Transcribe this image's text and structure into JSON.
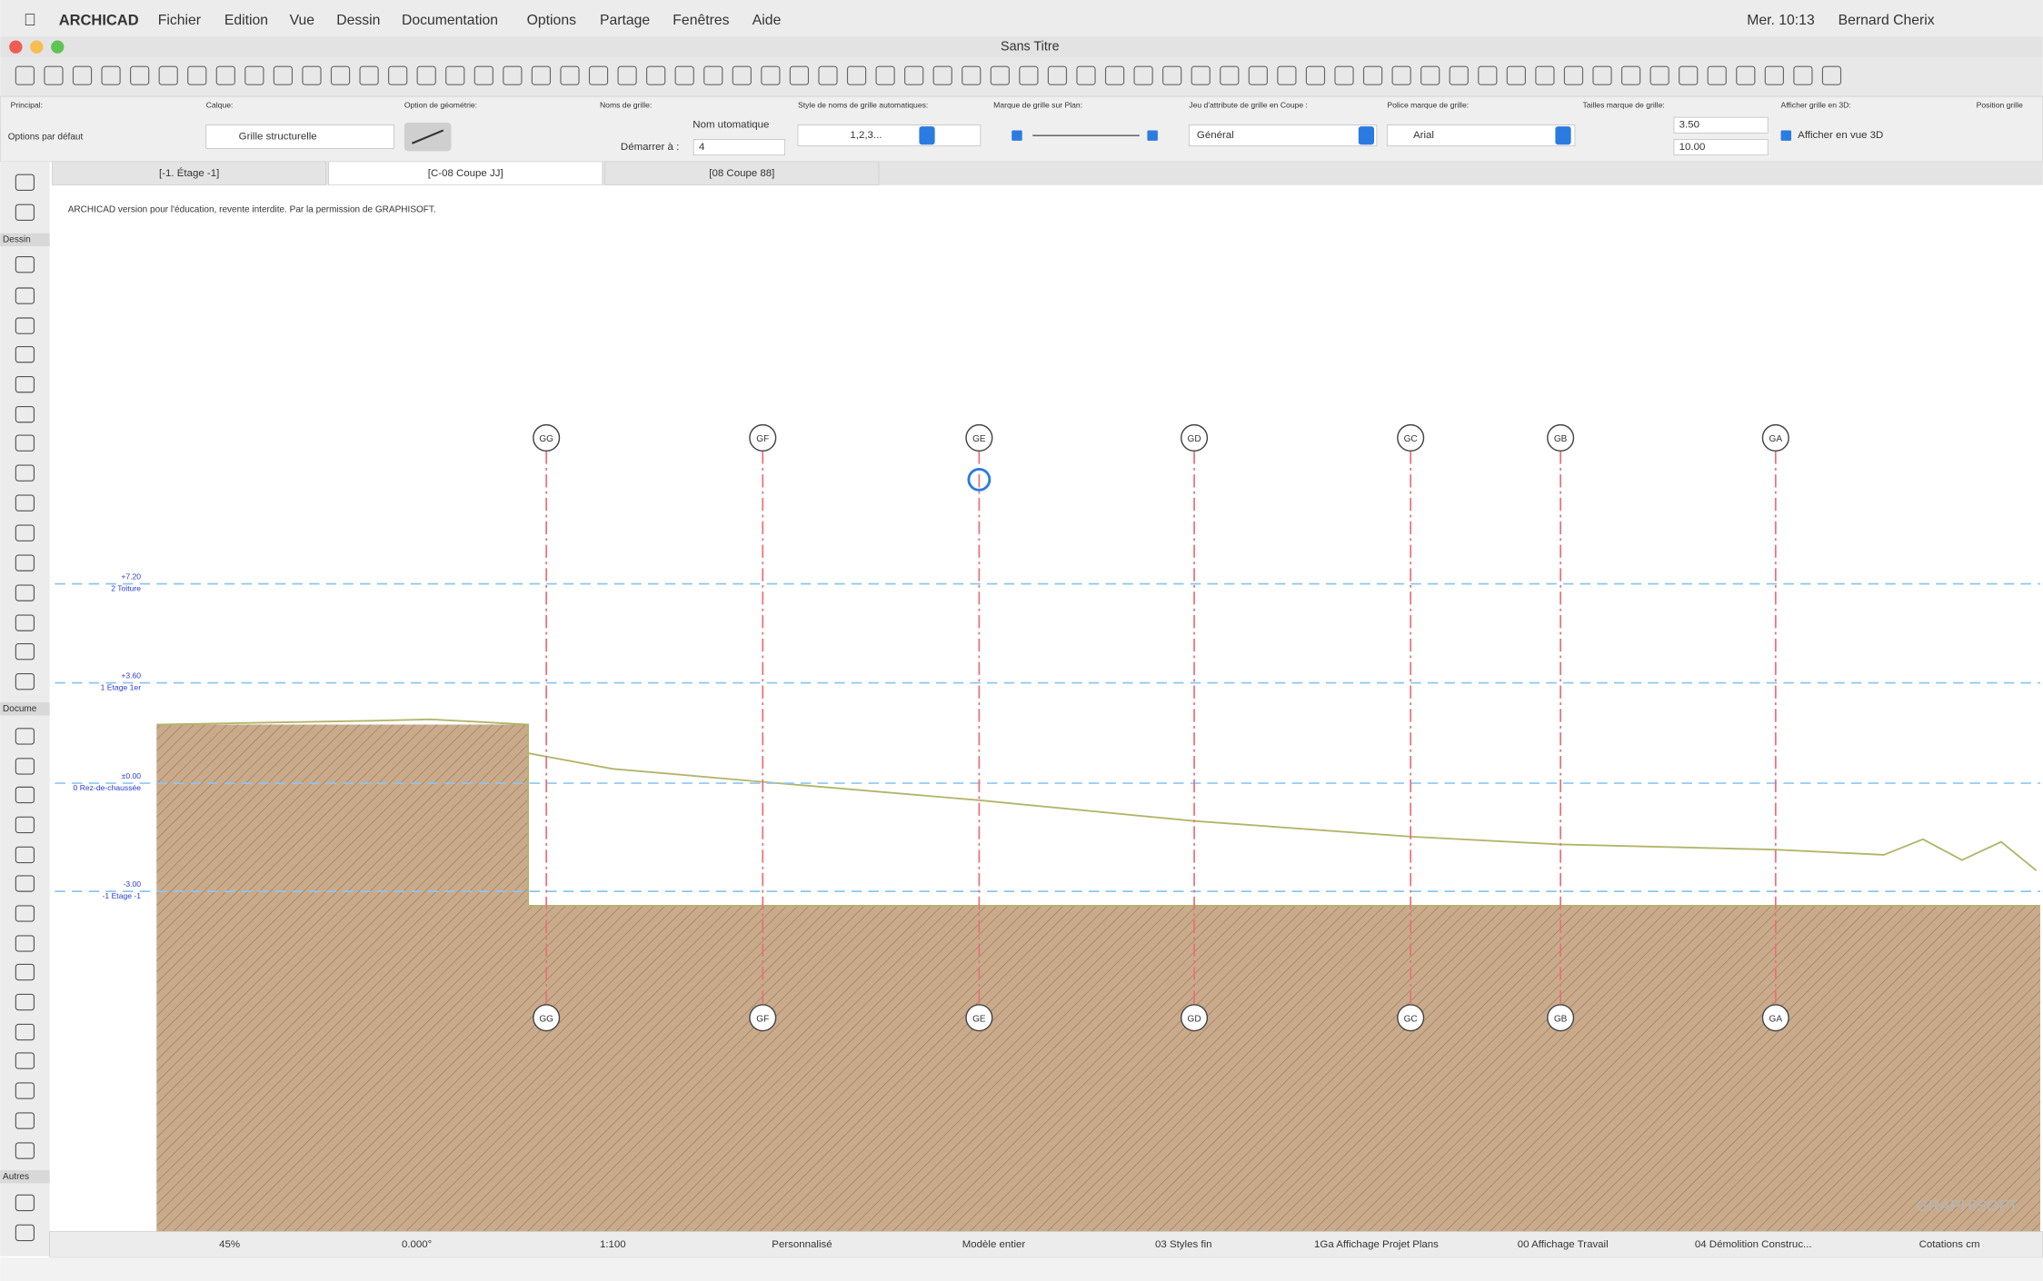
{
  "menubar": {
    "app": "ARCHICAD",
    "menus": [
      "Fichier",
      "Edition",
      "Vue",
      "Dessin",
      "Documentation",
      "Options",
      "Partage",
      "Fenêtres",
      "Aide"
    ],
    "clock": "Mer. 10:13",
    "user": "Bernard Cherix"
  },
  "window": {
    "title": "Sans Titre"
  },
  "infobox": {
    "labels": [
      "Principal:",
      "Calque:",
      "Option de géométrie:",
      "Noms de grille:",
      "Style de noms de grille automatiques:",
      "Marque de grille sur Plan:",
      "Jeu d'attribute de grille en Coupe :",
      "Police marque de grille:",
      "Tailles marque de grille:",
      "Afficher grille en 3D:",
      "Position grille"
    ],
    "principal": "Options par défaut",
    "layer": "Grille structurelle",
    "naming": "Nom utomatique",
    "start_label": "Démarrer à :",
    "start_value": "4",
    "style": "1,2,3...",
    "attribute_set": "Général",
    "font": "Arial",
    "size_1": "3.50",
    "size_2": "10.00",
    "show_3d": "Afficher en vue 3D"
  },
  "tabs": [
    "[-1. Étage -1]",
    "[C-08 Coupe JJ]",
    "[08 Coupe 88]"
  ],
  "toolbox": {
    "sections": [
      "Dessin",
      "Docume",
      "Autres"
    ]
  },
  "canvas": {
    "notice": "ARCHICAD version pour l'éducation, revente interdite. Par la permission de GRAPHISOFT.",
    "levels": [
      {
        "elevation": "+7.20",
        "name": "2 Toiture"
      },
      {
        "elevation": "+3.60",
        "name": "1 Etage 1er"
      },
      {
        "elevation": "±0.00",
        "name": "0 Rez-de-chaussée"
      },
      {
        "elevation": "-3.00",
        "name": "-1 Etage -1"
      }
    ],
    "grid_lines": [
      "GG",
      "GF",
      "GE",
      "GD",
      "GC",
      "GB",
      "GA"
    ],
    "watermark": "GRAPHISOFT"
  },
  "statusbar": [
    "45%",
    "0.000°",
    "1:100",
    "Personnalisé",
    "Modèle entier",
    "03 Styles fin",
    "1Ga Affichage Projet Plans",
    "00 Affichage Travail",
    "04 Démolition Construc...",
    "Cotations cm"
  ]
}
